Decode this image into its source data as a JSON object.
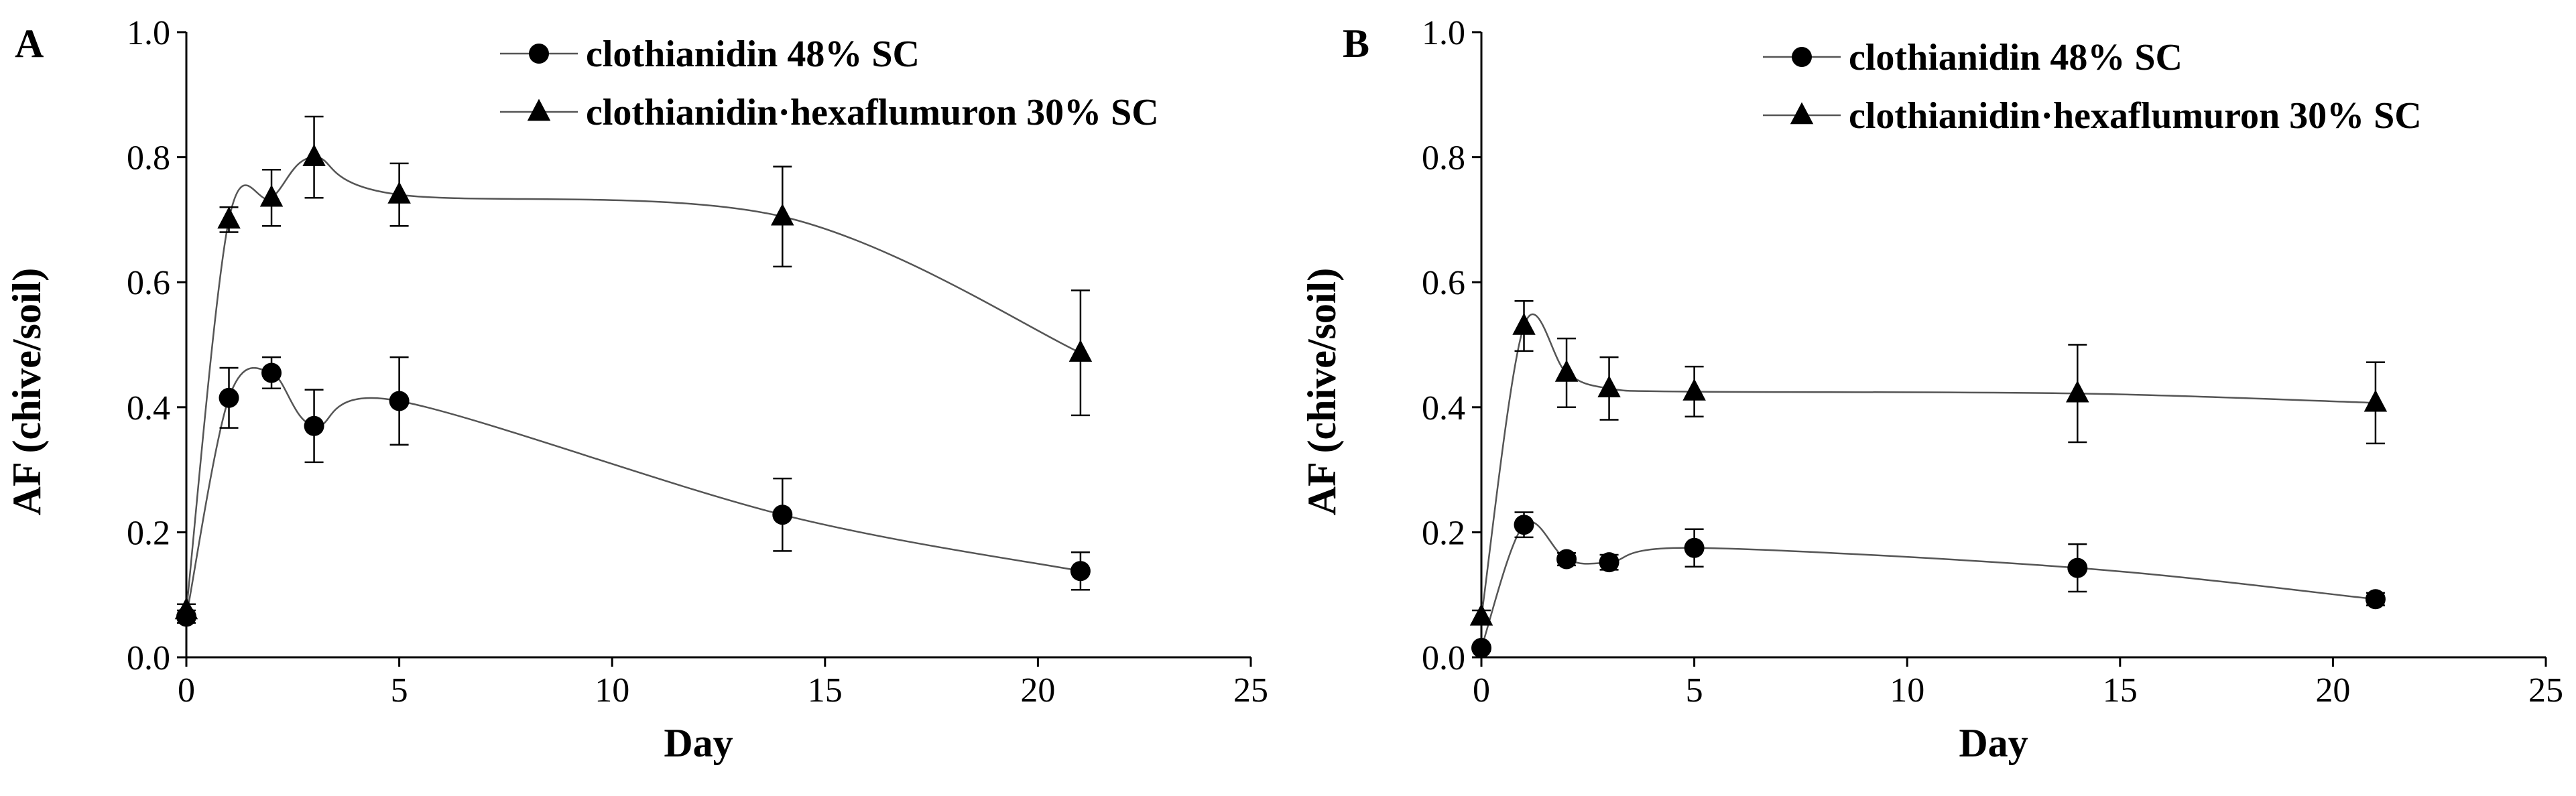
{
  "chart_data": [
    {
      "type": "line",
      "panel_label": "A",
      "xlabel": "Day",
      "ylabel": "AF (chive/soil)",
      "xlim": [
        0,
        25
      ],
      "ylim": [
        0.0,
        1.0
      ],
      "x_ticks": [
        0,
        5,
        10,
        15,
        20,
        25
      ],
      "y_ticks": [
        0.0,
        0.2,
        0.4,
        0.6,
        0.8,
        1.0
      ],
      "x_tick_labels": [
        "0",
        "5",
        "10",
        "15",
        "20",
        "25"
      ],
      "y_tick_labels": [
        "0.0",
        "0.2",
        "0.4",
        "0.6",
        "0.8",
        "1.0"
      ],
      "legend_position": "top-right",
      "series": [
        {
          "name": "clothianidin 48% SC",
          "marker": "circle",
          "x": [
            0,
            1,
            2,
            3,
            5,
            14,
            21
          ],
          "y": [
            0.065,
            0.415,
            0.455,
            0.37,
            0.41,
            0.228,
            0.138
          ],
          "err": [
            0.01,
            0.048,
            0.025,
            0.058,
            0.07,
            0.058,
            0.03
          ]
        },
        {
          "name": "clothianidin·hexaflumuron 30% SC",
          "marker": "triangle",
          "x": [
            0,
            1,
            2,
            3,
            5,
            14,
            21
          ],
          "y": [
            0.075,
            0.7,
            0.735,
            0.8,
            0.74,
            0.705,
            0.487
          ],
          "err": [
            0.01,
            0.02,
            0.045,
            0.065,
            0.05,
            0.08,
            0.1
          ]
        }
      ]
    },
    {
      "type": "line",
      "panel_label": "B",
      "xlabel": "Day",
      "ylabel": "AF (chive/soil)",
      "xlim": [
        0,
        25
      ],
      "ylim": [
        0.0,
        1.0
      ],
      "x_ticks": [
        0,
        5,
        10,
        15,
        20,
        25
      ],
      "y_ticks": [
        0.0,
        0.2,
        0.4,
        0.6,
        0.8,
        1.0
      ],
      "x_tick_labels": [
        "0",
        "5",
        "10",
        "15",
        "20",
        "25"
      ],
      "y_tick_labels": [
        "0.0",
        "0.2",
        "0.4",
        "0.6",
        "0.8",
        "1.0"
      ],
      "legend_position": "top-right",
      "series": [
        {
          "name": "clothianidin 48% SC",
          "marker": "circle",
          "x": [
            0,
            1,
            2,
            3,
            5,
            14,
            21
          ],
          "y": [
            0.015,
            0.212,
            0.157,
            0.152,
            0.175,
            0.143,
            0.093
          ],
          "err": [
            0.005,
            0.02,
            0.01,
            0.012,
            0.03,
            0.038,
            0.01
          ]
        },
        {
          "name": "clothianidin·hexaflumuron 30% SC",
          "marker": "triangle",
          "x": [
            0,
            1,
            2,
            3,
            5,
            14,
            21
          ],
          "y": [
            0.065,
            0.53,
            0.455,
            0.43,
            0.425,
            0.422,
            0.407
          ],
          "err": [
            0.01,
            0.04,
            0.055,
            0.05,
            0.04,
            0.078,
            0.065
          ]
        }
      ]
    }
  ]
}
